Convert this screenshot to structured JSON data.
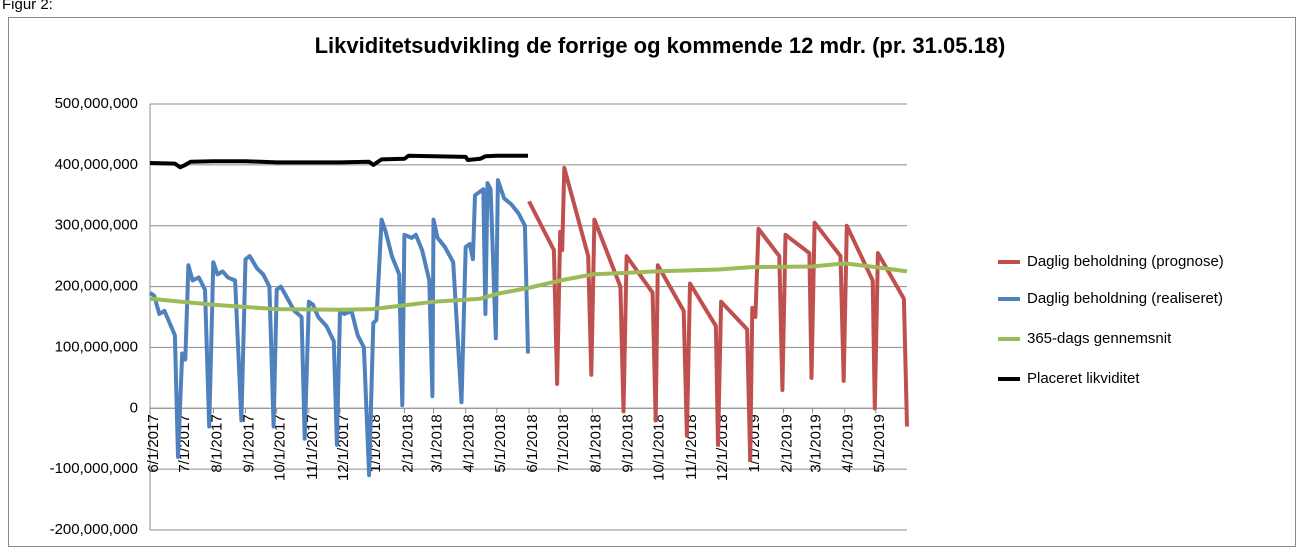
{
  "figure_label": "Figur 2:",
  "chart_data": {
    "type": "line",
    "title": "Likviditetsudvikling de forrige og kommende 12 mdr. (pr. 31.05.18)",
    "xlim": [
      "2017-06-01",
      "2019-05-31"
    ],
    "xticks": [
      {
        "value": "2017-06-01",
        "label": "6/1/2017"
      },
      {
        "value": "2017-07-01",
        "label": "7/1/2017"
      },
      {
        "value": "2017-08-01",
        "label": "8/1/2017"
      },
      {
        "value": "2017-09-01",
        "label": "9/1/2017"
      },
      {
        "value": "2017-10-01",
        "label": "10/1/2017"
      },
      {
        "value": "2017-11-01",
        "label": "11/1/2017"
      },
      {
        "value": "2017-12-01",
        "label": "12/1/2017"
      },
      {
        "value": "2018-01-01",
        "label": "1/1/2018"
      },
      {
        "value": "2018-02-01",
        "label": "2/1/2018"
      },
      {
        "value": "2018-03-01",
        "label": "3/1/2018"
      },
      {
        "value": "2018-04-01",
        "label": "4/1/2018"
      },
      {
        "value": "2018-05-01",
        "label": "5/1/2018"
      },
      {
        "value": "2018-06-01",
        "label": "6/1/2018"
      },
      {
        "value": "2018-07-01",
        "label": "7/1/2018"
      },
      {
        "value": "2018-08-01",
        "label": "8/1/2018"
      },
      {
        "value": "2018-09-01",
        "label": "9/1/2018"
      },
      {
        "value": "2018-10-01",
        "label": "10/1/2018"
      },
      {
        "value": "2018-11-01",
        "label": "11/1/2018"
      },
      {
        "value": "2018-12-01",
        "label": "12/1/2018"
      },
      {
        "value": "2019-01-01",
        "label": "1/1/2019"
      },
      {
        "value": "2019-02-01",
        "label": "2/1/2019"
      },
      {
        "value": "2019-03-01",
        "label": "3/1/2019"
      },
      {
        "value": "2019-04-01",
        "label": "4/1/2019"
      },
      {
        "value": "2019-05-01",
        "label": "5/1/2019"
      }
    ],
    "ylim": [
      -200000000,
      500000000
    ],
    "yticks": [
      {
        "value": -200000000,
        "label": "-200,000,000"
      },
      {
        "value": -100000000,
        "label": "-100,000,000"
      },
      0,
      {
        "value": 100000000,
        "label": "100,000,000"
      },
      {
        "value": 200000000,
        "label": "200,000,000"
      },
      {
        "value": 300000000,
        "label": "300,000,000"
      },
      {
        "value": 400000000,
        "label": "400,000,000"
      },
      {
        "value": 500000000,
        "label": "500,000,000"
      }
    ],
    "grid": true,
    "legend": "right",
    "series": [
      {
        "name": "Daglig beholdning (prognose)",
        "color": "#c0504d",
        "x": [
          "2018-06-01",
          "2018-06-25",
          "2018-06-28",
          "2018-07-01",
          "2018-07-03",
          "2018-07-05",
          "2018-07-28",
          "2018-07-31",
          "2018-08-03",
          "2018-08-28",
          "2018-08-31",
          "2018-09-03",
          "2018-09-28",
          "2018-10-01",
          "2018-10-03",
          "2018-10-28",
          "2018-10-31",
          "2018-11-03",
          "2018-11-28",
          "2018-11-30",
          "2018-12-03",
          "2018-12-28",
          "2018-12-31",
          "2019-01-02",
          "2019-01-05",
          "2019-01-08",
          "2019-01-28",
          "2019-01-31",
          "2019-02-03",
          "2019-02-26",
          "2019-02-28",
          "2019-03-03",
          "2019-03-28",
          "2019-03-31",
          "2019-04-03",
          "2019-04-28",
          "2019-04-30",
          "2019-05-03",
          "2019-05-28",
          "2019-05-31"
        ],
        "values": [
          340000000,
          260000000,
          40000000,
          290000000,
          260000000,
          395000000,
          250000000,
          55000000,
          310000000,
          200000000,
          -5000000,
          250000000,
          190000000,
          -20000000,
          235000000,
          160000000,
          -45000000,
          205000000,
          135000000,
          -60000000,
          175000000,
          130000000,
          -85000000,
          165000000,
          150000000,
          295000000,
          250000000,
          30000000,
          285000000,
          255000000,
          50000000,
          305000000,
          250000000,
          45000000,
          300000000,
          210000000,
          0,
          255000000,
          180000000,
          -30000000
        ]
      },
      {
        "name": "Daglig beholdning (realiseret)",
        "color": "#4f81bd",
        "x": [
          "2017-06-01",
          "2017-06-05",
          "2017-06-10",
          "2017-06-15",
          "2017-06-20",
          "2017-06-25",
          "2017-06-28",
          "2017-07-02",
          "2017-07-05",
          "2017-07-08",
          "2017-07-12",
          "2017-07-18",
          "2017-07-24",
          "2017-07-28",
          "2017-08-01",
          "2017-08-05",
          "2017-08-10",
          "2017-08-15",
          "2017-08-22",
          "2017-08-28",
          "2017-09-01",
          "2017-09-05",
          "2017-09-12",
          "2017-09-18",
          "2017-09-24",
          "2017-09-28",
          "2017-10-01",
          "2017-10-05",
          "2017-10-10",
          "2017-10-18",
          "2017-10-25",
          "2017-10-28",
          "2017-11-01",
          "2017-11-05",
          "2017-11-10",
          "2017-11-18",
          "2017-11-25",
          "2017-11-28",
          "2017-12-01",
          "2017-12-05",
          "2017-12-12",
          "2017-12-18",
          "2017-12-24",
          "2017-12-29",
          "2018-01-02",
          "2018-01-05",
          "2018-01-10",
          "2018-01-14",
          "2018-01-20",
          "2018-01-27",
          "2018-01-30",
          "2018-02-01",
          "2018-02-08",
          "2018-02-12",
          "2018-02-18",
          "2018-02-25",
          "2018-02-28",
          "2018-03-01",
          "2018-03-05",
          "2018-03-12",
          "2018-03-20",
          "2018-03-28",
          "2018-04-01",
          "2018-04-05",
          "2018-04-08",
          "2018-04-10",
          "2018-04-14",
          "2018-04-18",
          "2018-04-20",
          "2018-04-22",
          "2018-04-25",
          "2018-04-30",
          "2018-05-02",
          "2018-05-08",
          "2018-05-15",
          "2018-05-22",
          "2018-05-28",
          "2018-05-31"
        ],
        "values": [
          190000000,
          185000000,
          155000000,
          160000000,
          140000000,
          120000000,
          -80000000,
          90000000,
          80000000,
          235000000,
          210000000,
          215000000,
          195000000,
          -30000000,
          240000000,
          220000000,
          225000000,
          215000000,
          210000000,
          -20000000,
          245000000,
          250000000,
          230000000,
          220000000,
          200000000,
          -30000000,
          195000000,
          200000000,
          185000000,
          160000000,
          150000000,
          -50000000,
          175000000,
          170000000,
          150000000,
          135000000,
          110000000,
          -60000000,
          160000000,
          155000000,
          160000000,
          120000000,
          100000000,
          -110000000,
          140000000,
          145000000,
          310000000,
          290000000,
          250000000,
          220000000,
          5000000,
          285000000,
          280000000,
          285000000,
          260000000,
          210000000,
          20000000,
          310000000,
          280000000,
          265000000,
          240000000,
          10000000,
          265000000,
          270000000,
          245000000,
          350000000,
          355000000,
          360000000,
          155000000,
          370000000,
          360000000,
          115000000,
          375000000,
          345000000,
          335000000,
          320000000,
          300000000,
          90000000
        ]
      },
      {
        "name": "365-dags gennemsnit",
        "color": "#9bbb59",
        "x": [
          "2017-06-01",
          "2017-08-01",
          "2017-10-01",
          "2017-12-01",
          "2018-01-01",
          "2018-03-01",
          "2018-04-15",
          "2018-05-01",
          "2018-06-01",
          "2018-07-01",
          "2018-08-01",
          "2018-10-01",
          "2018-12-01",
          "2019-01-01",
          "2019-03-01",
          "2019-04-01",
          "2019-05-01",
          "2019-05-31"
        ],
        "values": [
          180000000,
          170000000,
          163000000,
          162000000,
          163000000,
          175000000,
          180000000,
          188000000,
          198000000,
          210000000,
          220000000,
          225000000,
          228000000,
          232000000,
          233000000,
          238000000,
          232000000,
          225000000
        ]
      },
      {
        "name": "Placeret likviditet",
        "color": "#000000",
        "x": [
          "2017-06-01",
          "2017-06-25",
          "2017-06-30",
          "2017-07-05",
          "2017-07-10",
          "2017-08-01",
          "2017-09-01",
          "2017-10-01",
          "2017-11-01",
          "2017-12-01",
          "2017-12-29",
          "2018-01-02",
          "2018-01-10",
          "2018-02-01",
          "2018-02-05",
          "2018-03-01",
          "2018-04-01",
          "2018-04-03",
          "2018-04-15",
          "2018-04-20",
          "2018-05-01",
          "2018-05-31"
        ],
        "values": [
          403000000,
          402000000,
          396000000,
          400000000,
          405000000,
          406000000,
          406000000,
          404000000,
          404000000,
          404000000,
          405000000,
          400000000,
          409000000,
          410000000,
          415000000,
          414000000,
          413000000,
          408000000,
          410000000,
          414000000,
          415000000,
          415000000
        ]
      }
    ]
  }
}
